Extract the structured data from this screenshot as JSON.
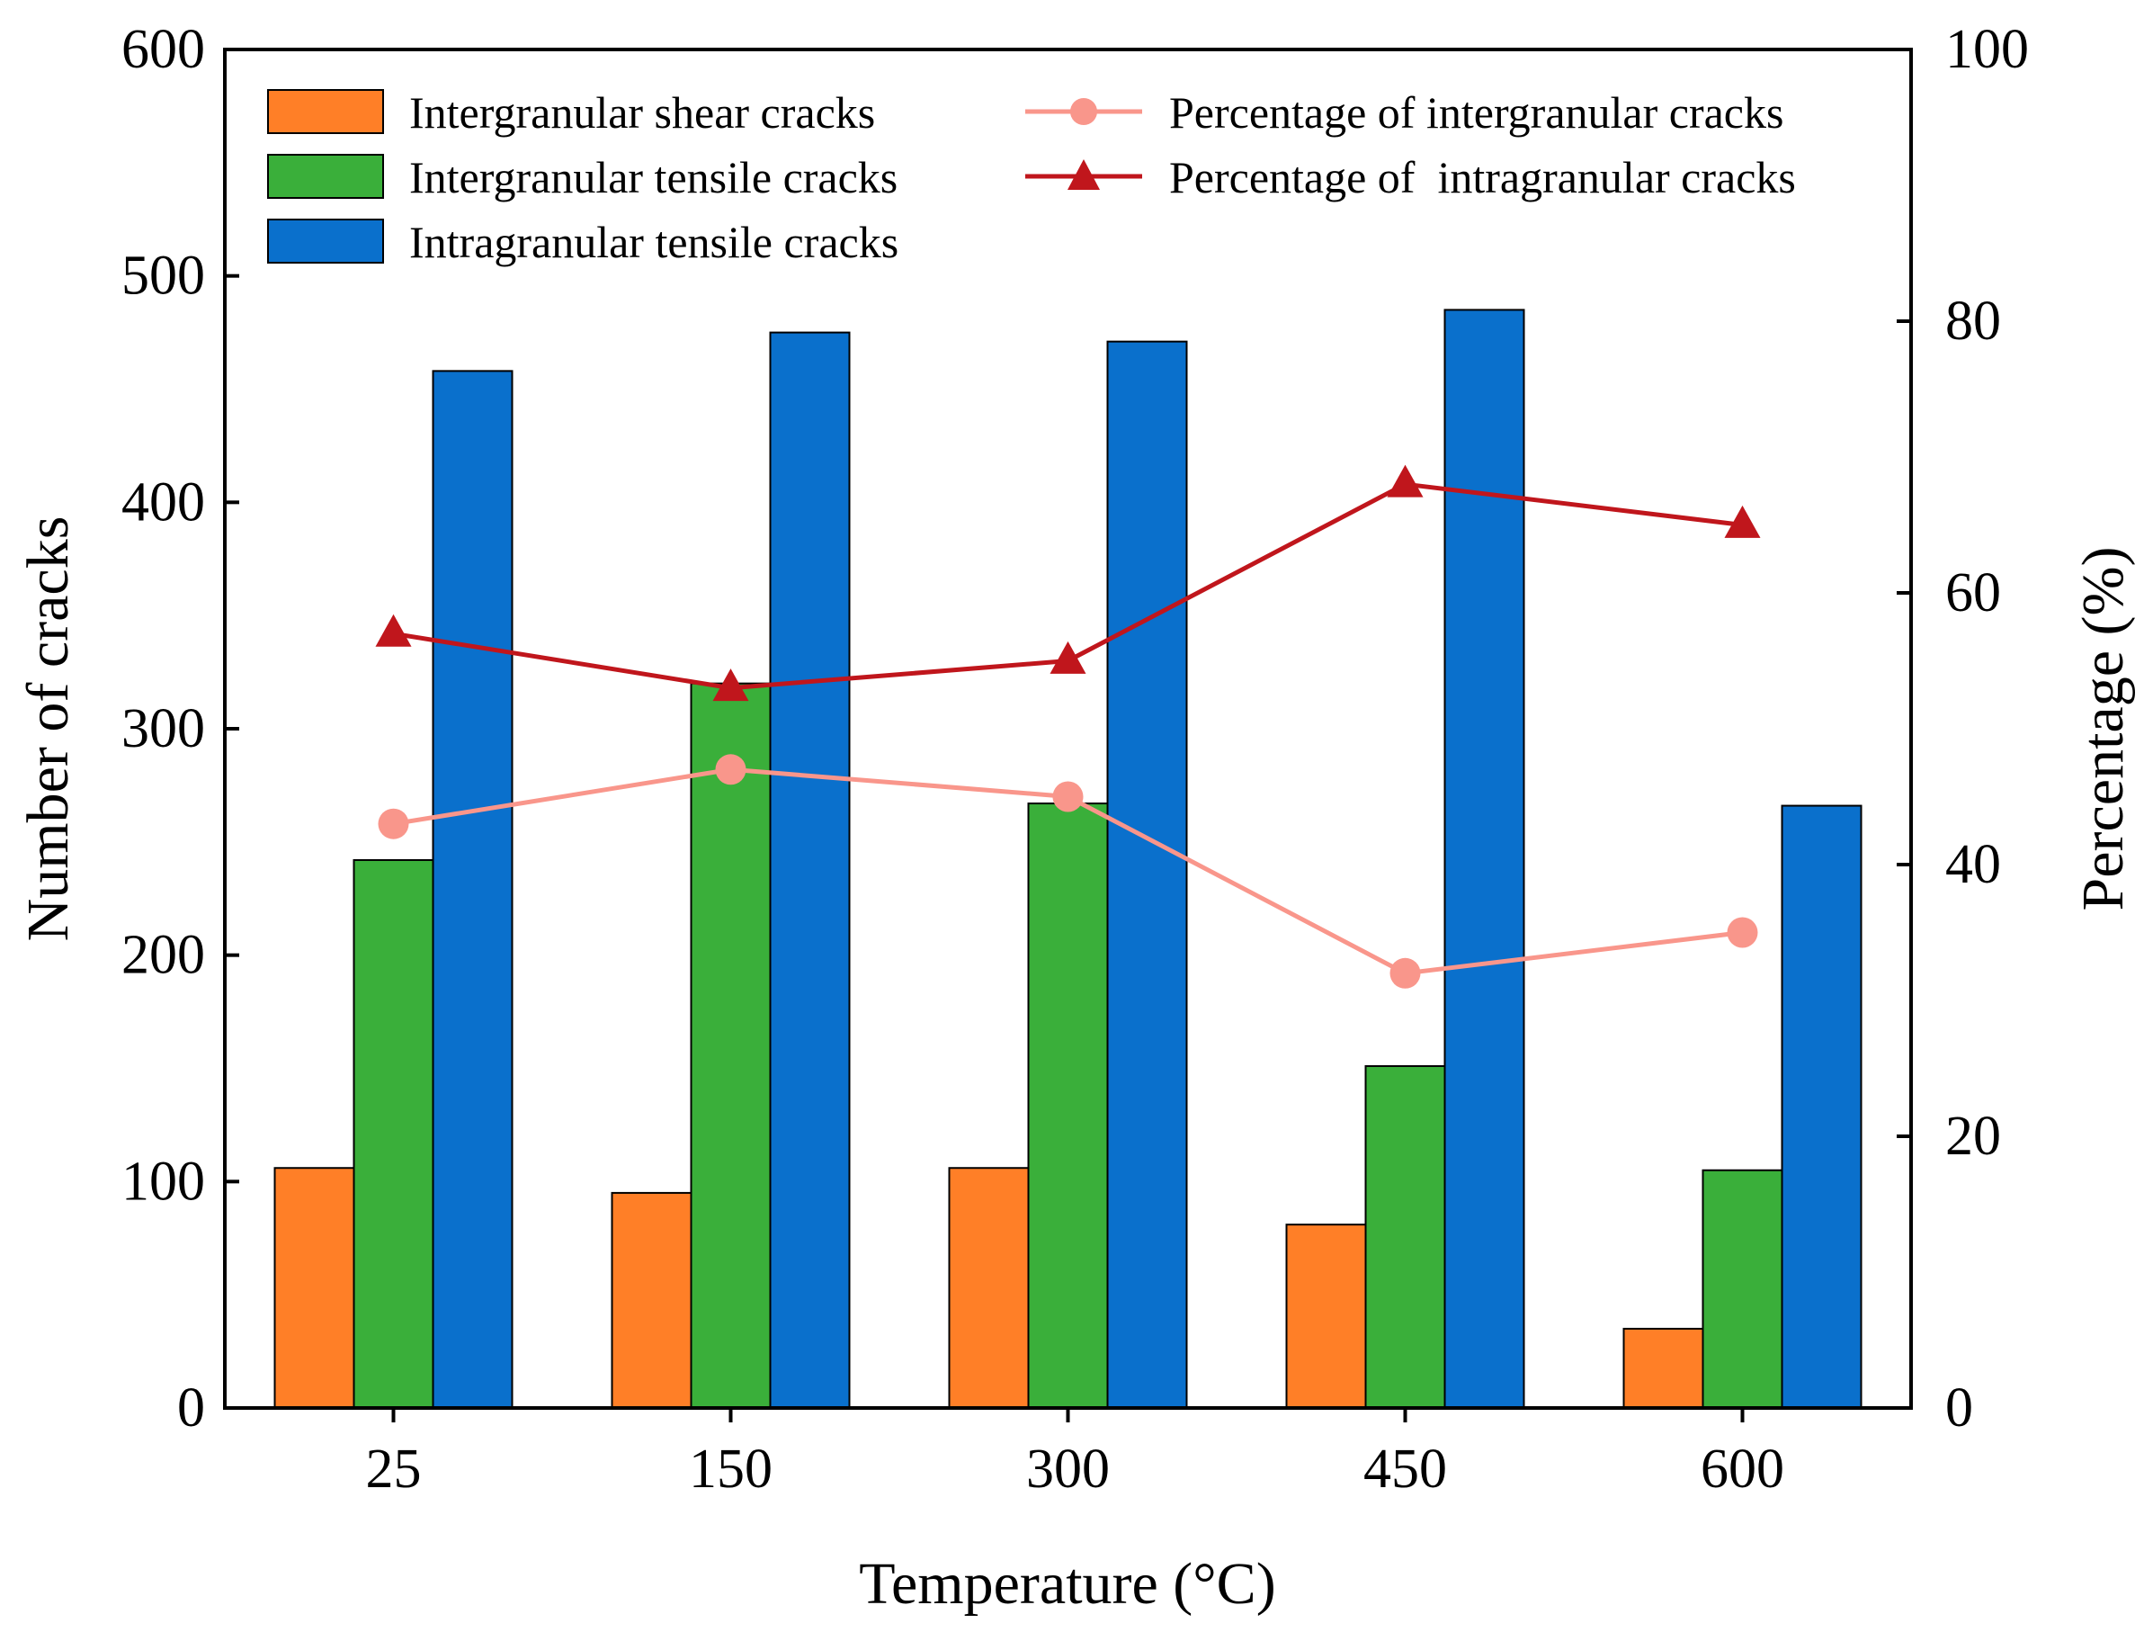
{
  "chart_data": {
    "type": "bar",
    "xlabel": "Temperature (°C)",
    "ylabel": "Number of cracks",
    "y2label": "Percentage (%)",
    "categories": [
      "25",
      "150",
      "300",
      "450",
      "600"
    ],
    "ylim": [
      0,
      600
    ],
    "y2lim": [
      0,
      100
    ],
    "yticks": [
      "0",
      "100",
      "200",
      "300",
      "400",
      "500",
      "600"
    ],
    "y2ticks": [
      "0",
      "20",
      "40",
      "60",
      "80",
      "100"
    ],
    "legend_position": "top",
    "bar_series": [
      {
        "name": "Intergranular shear cracks",
        "color": "#FF7F27",
        "values": [
          106,
          95,
          106,
          81,
          35
        ]
      },
      {
        "name": "Intergranular tensile cracks",
        "color": "#3AAF3A",
        "values": [
          242,
          320,
          267,
          151,
          105
        ]
      },
      {
        "name": "Intragranular tensile cracks",
        "color": "#0A70CC",
        "values": [
          458,
          475,
          471,
          485,
          266
        ]
      }
    ],
    "line_series": [
      {
        "name": "Percentage of intergranular cracks",
        "color": "#F9968B",
        "marker": "circle",
        "axis": "right",
        "values": [
          43,
          47,
          45,
          32,
          35
        ]
      },
      {
        "name": "Percentage of  intragranular cracks",
        "color": "#C0161C",
        "marker": "triangle",
        "axis": "right",
        "values": [
          57,
          53,
          55,
          68,
          65
        ]
      }
    ]
  }
}
